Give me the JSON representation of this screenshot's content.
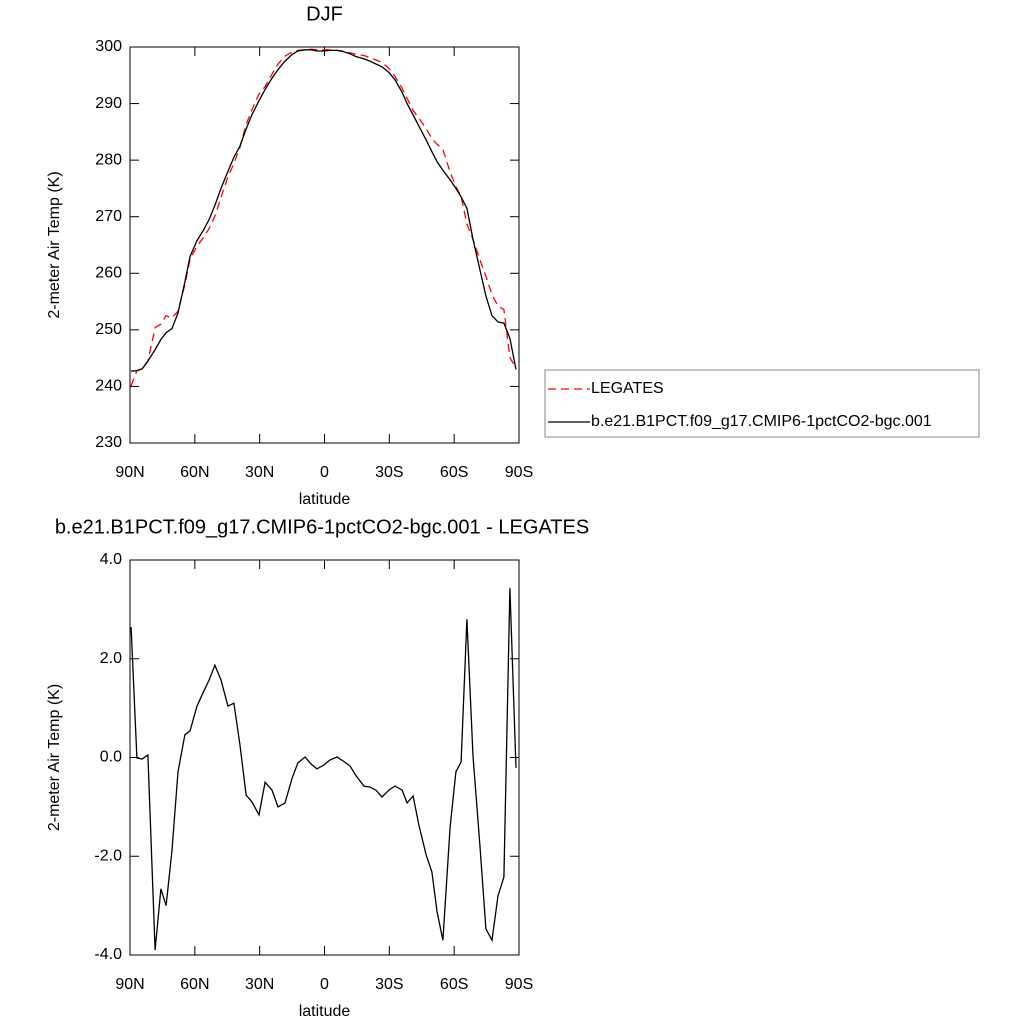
{
  "chart_data": [
    {
      "type": "line",
      "title": "DJF",
      "x_label": "latitude",
      "y_label": "2-meter Air Temp (K)",
      "x": [
        89.5,
        86.8,
        84.4,
        81.7,
        78.4,
        75.7,
        73.3,
        70.6,
        67.8,
        64.6,
        62.2,
        59.0,
        56.2,
        53.4,
        50.7,
        47.9,
        44.7,
        41.9,
        39.1,
        36.3,
        33.6,
        30.3,
        27.5,
        24.3,
        21.5,
        18.3,
        15.0,
        12.3,
        9.0,
        6.3,
        3.5,
        0.2,
        -2.5,
        -5.8,
        -8.6,
        -11.8,
        -14.6,
        -18.3,
        -21.0,
        -23.8,
        -26.6,
        -29.8,
        -32.6,
        -35.9,
        -38.2,
        -41.0,
        -43.7,
        -47.0,
        -49.7,
        -52.1,
        -54.8,
        -58.1,
        -60.8,
        -63.2,
        -65.9,
        -68.7,
        -72.0,
        -74.7,
        -77.5,
        -80.3,
        -83.0,
        -85.8,
        -88.6
      ],
      "series": [
        {
          "name": "LEGATES",
          "color": "#ff0000",
          "dash": "dashed",
          "values": [
            240.1,
            242.8,
            243.1,
            244.45,
            250.4,
            251.0,
            252.5,
            252.1,
            253.3,
            258.0,
            262.5,
            264.8,
            266.2,
            267.9,
            270.1,
            273.4,
            277.0,
            279.4,
            282.3,
            286.3,
            288.9,
            291.7,
            293.0,
            295.2,
            297.0,
            298.4,
            299.1,
            299.4,
            299.5,
            299.6,
            299.5,
            299.5,
            299.5,
            299.4,
            299.3,
            299.0,
            298.7,
            298.5,
            298.1,
            297.7,
            297.3,
            296.2,
            294.8,
            292.7,
            290.9,
            288.8,
            287.4,
            285.6,
            283.8,
            282.8,
            281.9,
            277.9,
            275.3,
            273.6,
            268.7,
            266.0,
            262.3,
            259.5,
            256.2,
            254.2,
            253.6,
            245.1,
            243.2
          ]
        },
        {
          "name": "b.e21.B1PCT.f09_g17.CMIP6-1pctCO2-bgc.001",
          "color": "#000000",
          "dash": "solid",
          "values": [
            242.7,
            242.8,
            243.1,
            244.5,
            246.5,
            248.3,
            249.5,
            250.2,
            253.0,
            258.5,
            263.0,
            265.8,
            267.5,
            269.5,
            272.0,
            275.0,
            278.0,
            280.5,
            282.5,
            285.5,
            288.0,
            290.5,
            292.5,
            294.5,
            296.0,
            297.5,
            298.7,
            299.3,
            299.5,
            299.5,
            299.3,
            299.3,
            299.4,
            299.4,
            299.2,
            298.8,
            298.3,
            297.9,
            297.5,
            297.0,
            296.5,
            295.5,
            294.2,
            292.0,
            290.0,
            288.0,
            286.0,
            283.6,
            281.5,
            279.7,
            278.2,
            276.5,
            275.0,
            273.5,
            271.5,
            266.0,
            260.5,
            256.0,
            252.5,
            251.4,
            251.2,
            248.5,
            243.0
          ]
        }
      ],
      "xlim": [
        90,
        -90
      ],
      "xticks": [
        {
          "value": 90,
          "label": "90N"
        },
        {
          "value": 60,
          "label": "60N"
        },
        {
          "value": 30,
          "label": "30N"
        },
        0,
        {
          "value": -30,
          "label": "30S"
        },
        {
          "value": -60,
          "label": "60S"
        },
        {
          "value": -90,
          "label": "90S"
        }
      ],
      "ylim": [
        230,
        300
      ],
      "yticks": [
        230,
        240,
        250,
        260,
        270,
        280,
        290,
        300
      ],
      "legend": "outside-right"
    },
    {
      "type": "line",
      "title": "b.e21.B1PCT.f09_g17.CMIP6-1pctCO2-bgc.001 - LEGATES",
      "x_label": "latitude",
      "y_label": "2-meter Air Temp (K)",
      "x": [
        89.5,
        86.8,
        84.4,
        81.7,
        78.4,
        75.7,
        73.3,
        70.6,
        67.8,
        64.6,
        62.2,
        59.0,
        56.2,
        53.4,
        50.7,
        47.9,
        44.7,
        41.9,
        39.1,
        36.3,
        33.6,
        30.3,
        27.5,
        24.3,
        21.5,
        18.3,
        15.0,
        12.3,
        9.0,
        6.3,
        3.5,
        0.2,
        -2.5,
        -5.8,
        -8.6,
        -11.8,
        -14.6,
        -18.3,
        -21.0,
        -23.8,
        -26.6,
        -29.8,
        -32.6,
        -35.9,
        -38.2,
        -41.0,
        -43.7,
        -47.0,
        -49.7,
        -52.1,
        -54.8,
        -58.1,
        -60.8,
        -63.2,
        -65.9,
        -68.7,
        -72.0,
        -74.7,
        -77.5,
        -80.3,
        -83.0,
        -85.8,
        -88.6
      ],
      "values": [
        2.64,
        -0.01,
        -0.03,
        0.05,
        -3.9,
        -2.66,
        -3.0,
        -1.9,
        -0.29,
        0.46,
        0.54,
        1.04,
        1.31,
        1.57,
        1.87,
        1.57,
        1.04,
        1.1,
        0.25,
        -0.76,
        -0.9,
        -1.16,
        -0.5,
        -0.66,
        -1.0,
        -0.92,
        -0.42,
        -0.11,
        0.01,
        -0.13,
        -0.23,
        -0.15,
        -0.05,
        0.01,
        -0.07,
        -0.17,
        -0.37,
        -0.58,
        -0.6,
        -0.66,
        -0.8,
        -0.66,
        -0.58,
        -0.66,
        -0.92,
        -0.78,
        -1.37,
        -1.97,
        -2.32,
        -3.13,
        -3.7,
        -1.41,
        -0.29,
        -0.09,
        2.8,
        0.03,
        -1.83,
        -3.47,
        -3.7,
        -2.8,
        -2.42,
        3.43,
        -0.21
      ],
      "color": "#000000",
      "xlim": [
        90,
        -90
      ],
      "xticks": [
        {
          "value": 90,
          "label": "90N"
        },
        {
          "value": 60,
          "label": "60N"
        },
        {
          "value": 30,
          "label": "30N"
        },
        0,
        {
          "value": -30,
          "label": "30S"
        },
        {
          "value": -60,
          "label": "60S"
        },
        {
          "value": -90,
          "label": "90S"
        }
      ],
      "ylim": [
        -4,
        4
      ],
      "yticks": [
        {
          "value": -4,
          "label": "-4.0"
        },
        {
          "value": -2,
          "label": "-2.0"
        },
        {
          "value": 0,
          "label": "0.0"
        },
        {
          "value": 2,
          "label": "2.0"
        },
        {
          "value": 4,
          "label": "4.0"
        }
      ]
    }
  ]
}
